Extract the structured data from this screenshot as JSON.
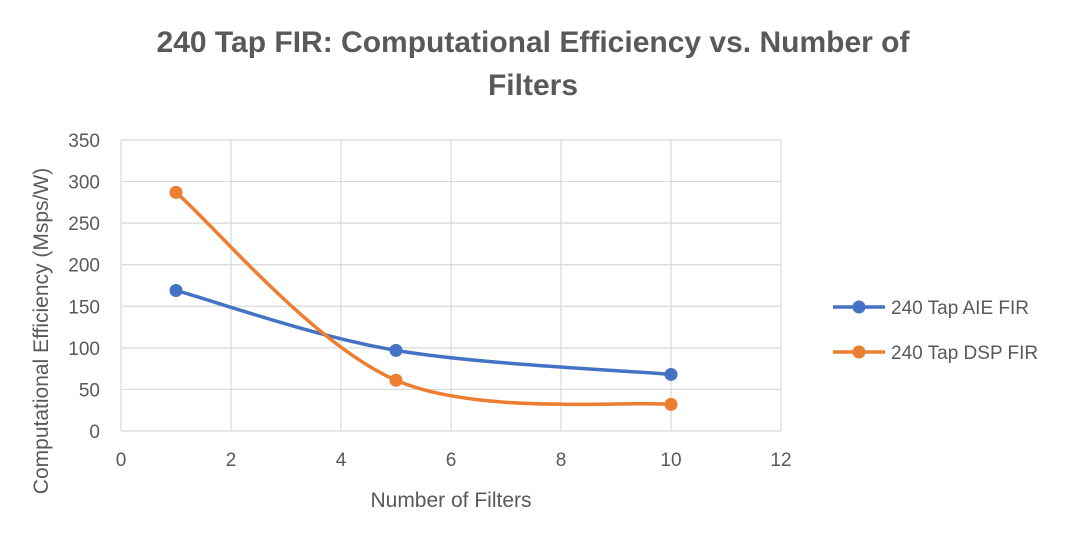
{
  "chart_data": {
    "type": "line",
    "title_line1": "240 Tap FIR: Computational Efficiency vs. Number of",
    "title_line2": "Filters",
    "xlabel": "Number of Filters",
    "ylabel": "Computational Efficiency (Msps/W)",
    "xlim": [
      0,
      12
    ],
    "ylim": [
      0,
      350
    ],
    "xticks": [
      0,
      2,
      4,
      6,
      8,
      10,
      12
    ],
    "yticks": [
      0,
      50,
      100,
      150,
      200,
      250,
      300,
      350
    ],
    "grid": true,
    "smooth": true,
    "legend_position": "right",
    "series": [
      {
        "name": "240 Tap AIE FIR",
        "color": "#4472C4",
        "x": [
          1,
          5,
          10
        ],
        "y": [
          169,
          97,
          68
        ]
      },
      {
        "name": "240 Tap DSP FIR",
        "color": "#ED7D31",
        "x": [
          1,
          5,
          10
        ],
        "y": [
          287,
          61,
          32
        ]
      }
    ]
  }
}
